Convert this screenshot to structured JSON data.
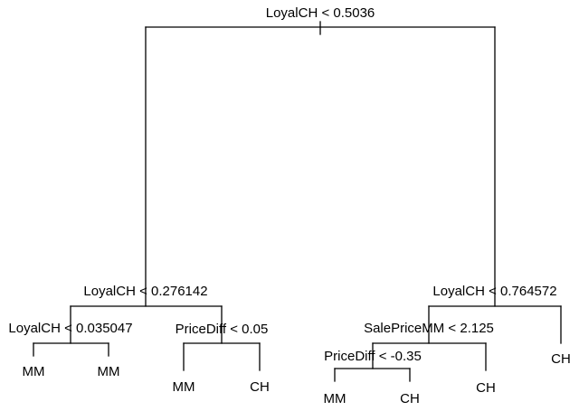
{
  "tree": {
    "root": {
      "label": "LoyalCH < 0.5036",
      "left": {
        "label": "LoyalCH < 0.276142",
        "left": {
          "label": "LoyalCH < 0.035047",
          "left": {
            "leaf": "MM"
          },
          "right": {
            "leaf": "MM"
          }
        },
        "right": {
          "label": "PriceDiff < 0.05",
          "left": {
            "leaf": "MM"
          },
          "right": {
            "leaf": "CH"
          }
        }
      },
      "right": {
        "label": "LoyalCH < 0.764572",
        "left": {
          "label": "SalePriceMM < 2.125",
          "left": {
            "label": "PriceDiff < -0.35",
            "left": {
              "leaf": "MM"
            },
            "right": {
              "leaf": "CH"
            }
          },
          "right": {
            "leaf": "CH"
          }
        },
        "right": {
          "leaf": "CH"
        }
      }
    }
  }
}
